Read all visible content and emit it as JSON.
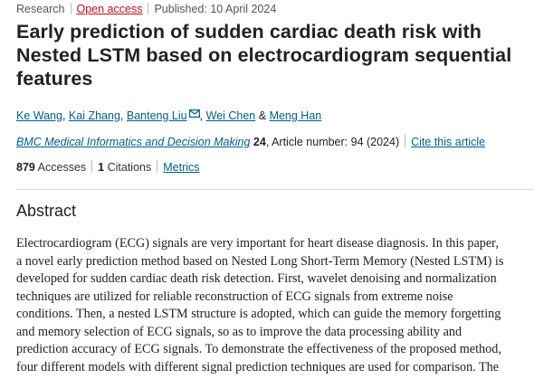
{
  "meta": {
    "type": "Research",
    "open_access": "Open access",
    "published": "Published: 10 April 2024"
  },
  "title": {
    "line1": "Early prediction of sudden cardiac death risk with",
    "line2": "Nested LSTM based on electrocardiogram sequential",
    "line3": "features"
  },
  "authors": {
    "list": [
      "Ke Wang",
      "Kai Zhang",
      "Banteng Liu",
      "Wei Chen",
      "Meng Han"
    ],
    "separator": ",",
    "and": "&"
  },
  "journal": {
    "name": "BMC Medical Informatics and Decision Making",
    "volume": "24",
    "details": ", Article number: 94 (2024)",
    "cite_label": "Cite this article"
  },
  "metrics": {
    "accesses_count": "879",
    "accesses_label": "Accesses",
    "citations_count": "1",
    "citations_label": "Citations",
    "metrics_link": "Metrics"
  },
  "abstract": {
    "heading": "Abstract",
    "lines": [
      "Electrocardiogram (ECG) signals are very important for heart disease diagnosis. In this paper,",
      "a novel early prediction method based on Nested Long Short-Term Memory (Nested LSTM) is",
      "developed for sudden cardiac death risk detection. First, wavelet denoising and normalization",
      "techniques are utilized for reliable reconstruction of ECG signals from extreme noise",
      "conditions. Then, a nested LSTM structure is adopted, which can guide the memory forgetting",
      "and memory selection of ECG signals, so as to improve the data processing ability and",
      "prediction accuracy of ECG signals. To demonstrate the effectiveness of the proposed method,",
      "four different models with different signal prediction techniques are used for comparison. The"
    ]
  },
  "colors": {
    "link": "#025e8d",
    "open_access": "#c40d20",
    "text": "#222222"
  }
}
